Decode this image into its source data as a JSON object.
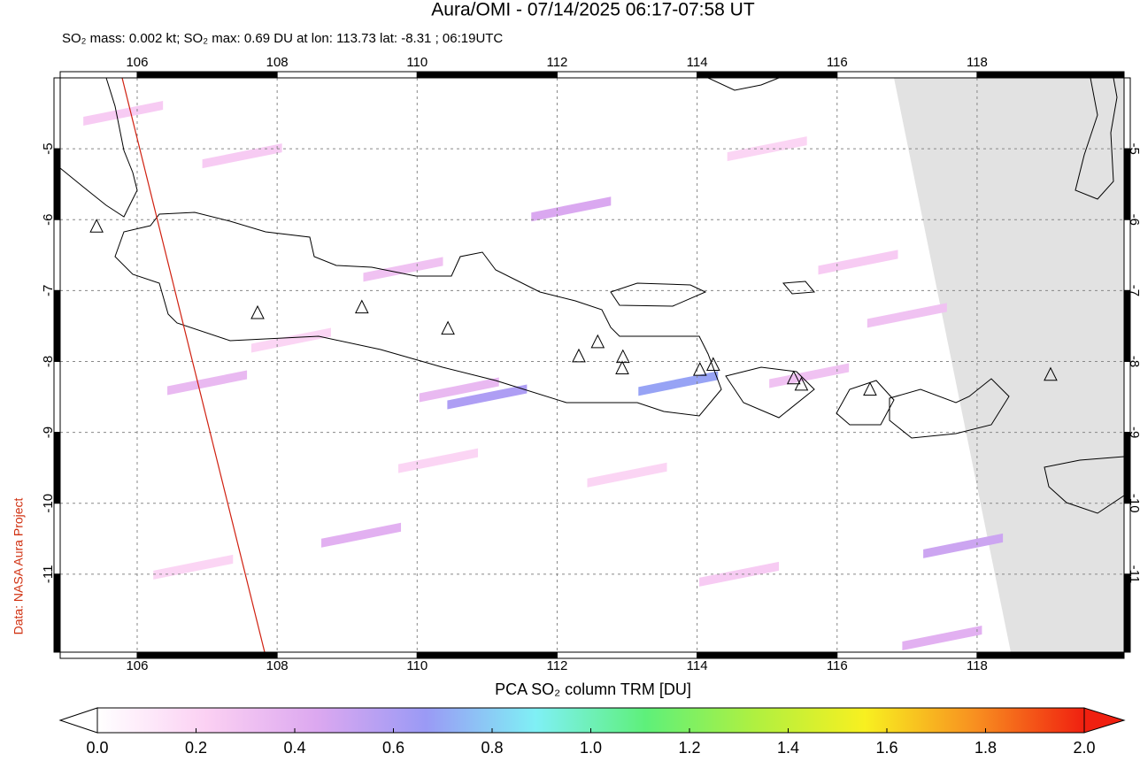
{
  "chart_data": {
    "type": "map",
    "title": "Aura/OMI - 07/14/2025 06:17-07:58 UT",
    "subtitle": "SO₂ mass: 0.002 kt; SO₂ max: 0.69 DU at lon: 113.73 lat: -8.31 ; 06:19UTC",
    "credit": "Data: NASA Aura Project",
    "xlim": [
      104.9,
      120.1
    ],
    "ylim": [
      -12.1,
      -4.0
    ],
    "xticks": [
      106,
      108,
      110,
      112,
      114,
      116,
      118
    ],
    "yticks": [
      -5,
      -6,
      -7,
      -8,
      -9,
      -10,
      -11
    ],
    "grid": true,
    "pixels": [
      {
        "lon": 113.73,
        "lat": -8.31,
        "value": 0.69
      },
      {
        "lon": 111.0,
        "lat": -8.5,
        "value": 0.6
      },
      {
        "lon": 112.2,
        "lat": -5.85,
        "value": 0.45
      },
      {
        "lon": 109.2,
        "lat": -10.45,
        "value": 0.4
      },
      {
        "lon": 107.0,
        "lat": -8.3,
        "value": 0.35
      },
      {
        "lon": 110.6,
        "lat": -8.4,
        "value": 0.35
      },
      {
        "lon": 115.6,
        "lat": -8.2,
        "value": 0.3
      },
      {
        "lon": 117.8,
        "lat": -10.6,
        "value": 0.5
      },
      {
        "lon": 117.5,
        "lat": -11.9,
        "value": 0.4
      },
      {
        "lon": 105.8,
        "lat": -4.5,
        "value": 0.25
      },
      {
        "lon": 107.5,
        "lat": -5.1,
        "value": 0.25
      },
      {
        "lon": 109.8,
        "lat": -6.7,
        "value": 0.3
      },
      {
        "lon": 116.3,
        "lat": -6.6,
        "value": 0.25
      },
      {
        "lon": 117.0,
        "lat": -7.35,
        "value": 0.3
      },
      {
        "lon": 108.2,
        "lat": -7.7,
        "value": 0.2
      },
      {
        "lon": 113.0,
        "lat": -9.6,
        "value": 0.2
      },
      {
        "lon": 106.8,
        "lat": -10.9,
        "value": 0.2
      },
      {
        "lon": 114.6,
        "lat": -11.0,
        "value": 0.25
      },
      {
        "lon": 110.3,
        "lat": -9.4,
        "value": 0.2
      },
      {
        "lon": 115.0,
        "lat": -5.0,
        "value": 0.2
      }
    ],
    "volcanoes": [
      {
        "lon": 105.42,
        "lat": -6.1
      },
      {
        "lon": 107.72,
        "lat": -7.32
      },
      {
        "lon": 109.21,
        "lat": -7.24
      },
      {
        "lon": 110.44,
        "lat": -7.54
      },
      {
        "lon": 112.31,
        "lat": -7.93
      },
      {
        "lon": 112.58,
        "lat": -7.73
      },
      {
        "lon": 112.94,
        "lat": -7.94
      },
      {
        "lon": 112.93,
        "lat": -8.1
      },
      {
        "lon": 114.04,
        "lat": -8.12
      },
      {
        "lon": 114.23,
        "lat": -8.05
      },
      {
        "lon": 115.38,
        "lat": -8.24
      },
      {
        "lon": 115.49,
        "lat": -8.33
      },
      {
        "lon": 116.47,
        "lat": -8.4
      },
      {
        "lon": 119.05,
        "lat": -8.19
      }
    ],
    "colorbar": {
      "label": "PCA SO₂ column TRM [DU]",
      "lim": [
        0,
        2
      ],
      "colormap": [
        "#ffffff",
        "#fbd0f3",
        "#dca8f0",
        "#9a9af5",
        "#7ff0f5",
        "#5ef07a",
        "#b0f040",
        "#f8f020",
        "#f89020",
        "#f02010"
      ],
      "ticks": [
        {
          "value": 0,
          "label": "0.0"
        },
        {
          "value": 0.2,
          "label": "0.2"
        },
        {
          "value": 0.4,
          "label": "0.4"
        },
        {
          "value": 0.6,
          "label": "0.6"
        },
        {
          "value": 0.8,
          "label": "0.8"
        },
        {
          "value": 1,
          "label": "1.0"
        },
        {
          "value": 1.2,
          "label": "1.2"
        },
        {
          "value": 1.4,
          "label": "1.4"
        },
        {
          "value": 1.6,
          "label": "1.6"
        },
        {
          "value": 1.8,
          "label": "1.8"
        },
        {
          "value": 2,
          "label": "2.0"
        }
      ]
    }
  }
}
